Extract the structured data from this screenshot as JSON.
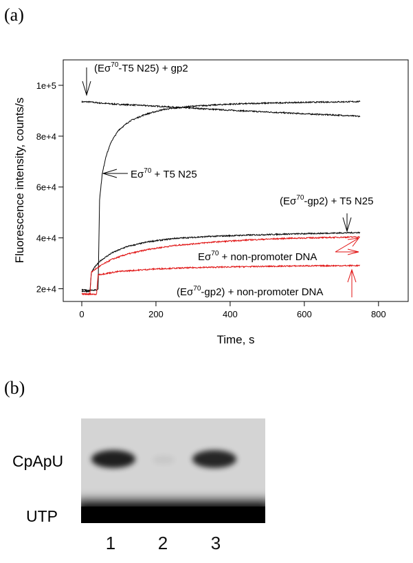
{
  "panels": {
    "a": "(a)",
    "b": "(b)"
  },
  "chart_data": {
    "type": "line",
    "xlabel": "Time, s",
    "ylabel": "Fluorescence intensity, counts/s",
    "xlim": [
      -50,
      880
    ],
    "ylim": [
      15000,
      110000
    ],
    "xticks": [
      0,
      200,
      400,
      600,
      800
    ],
    "xtick_labels": [
      "0",
      "200",
      "400",
      "600",
      "800"
    ],
    "yticks": [
      20000,
      40000,
      60000,
      80000,
      100000
    ],
    "ytick_labels": [
      "2e+4",
      "4e+4",
      "6e+4",
      "8e+4",
      "1e+5"
    ],
    "grid": false,
    "series": [
      {
        "key": "s1",
        "color": "#000000",
        "x": [
          0,
          20,
          50,
          100,
          150,
          200,
          300,
          400,
          500,
          600,
          700,
          750
        ],
        "y": [
          93500,
          93500,
          93000,
          92500,
          92200,
          91800,
          91000,
          90200,
          89500,
          88800,
          88200,
          87800
        ]
      },
      {
        "key": "s2",
        "color": "#000000",
        "x": [
          0,
          40,
          44,
          48,
          55,
          65,
          80,
          100,
          130,
          170,
          220,
          300,
          400,
          500,
          600,
          700,
          750
        ],
        "y": [
          19500,
          19500,
          20000,
          55000,
          65000,
          72000,
          78000,
          82500,
          86000,
          88500,
          90500,
          91800,
          92600,
          93000,
          93300,
          93500,
          93600
        ]
      },
      {
        "key": "s3",
        "color": "#000000",
        "x": [
          0,
          22,
          26,
          35,
          50,
          80,
          120,
          180,
          250,
          350,
          450,
          550,
          650,
          750
        ],
        "y": [
          19000,
          19000,
          26500,
          28500,
          31000,
          34000,
          36500,
          38500,
          39800,
          40600,
          41100,
          41500,
          41800,
          42100
        ]
      },
      {
        "key": "s4",
        "color": "#e01010",
        "x": [
          0,
          22,
          26,
          35,
          50,
          80,
          120,
          180,
          250,
          350,
          450,
          550,
          650,
          750
        ],
        "y": [
          18000,
          18000,
          26500,
          27500,
          29000,
          31500,
          33500,
          35500,
          37000,
          38300,
          39200,
          39800,
          40100,
          40400
        ]
      },
      {
        "key": "s5",
        "color": "#e01010",
        "x": [
          0,
          40,
          44,
          100,
          200,
          300,
          400,
          500,
          600,
          750
        ],
        "y": [
          17800,
          17800,
          25500,
          26800,
          27800,
          28300,
          28600,
          28800,
          29000,
          29100
        ]
      }
    ],
    "annotations": [
      {
        "key": "gp2",
        "pre": "(Eσ",
        "sup": "70",
        "post": "-T5 N25) + gp2"
      },
      {
        "key": "t5",
        "pre": "Eσ",
        "sup": "70",
        "post": " + T5 N25"
      },
      {
        "key": "gp2t5",
        "pre": "(Eσ",
        "sup": "70",
        "post": "-gp2) + T5 N25"
      },
      {
        "key": "nonprom",
        "pre": "Eσ",
        "sup": "70",
        "post": " + non-promoter DNA"
      },
      {
        "key": "gp2nonprom",
        "pre": "(Eσ",
        "sup": "70",
        "post": "-gp2) + non-promoter DNA"
      }
    ]
  },
  "gel": {
    "band_labels": [
      "CpApU",
      "UTP"
    ],
    "lanes": [
      {
        "label": "1",
        "cpapu_intensity": 0.85
      },
      {
        "label": "2",
        "cpapu_intensity": 0.06
      },
      {
        "label": "3",
        "cpapu_intensity": 0.82
      }
    ]
  }
}
